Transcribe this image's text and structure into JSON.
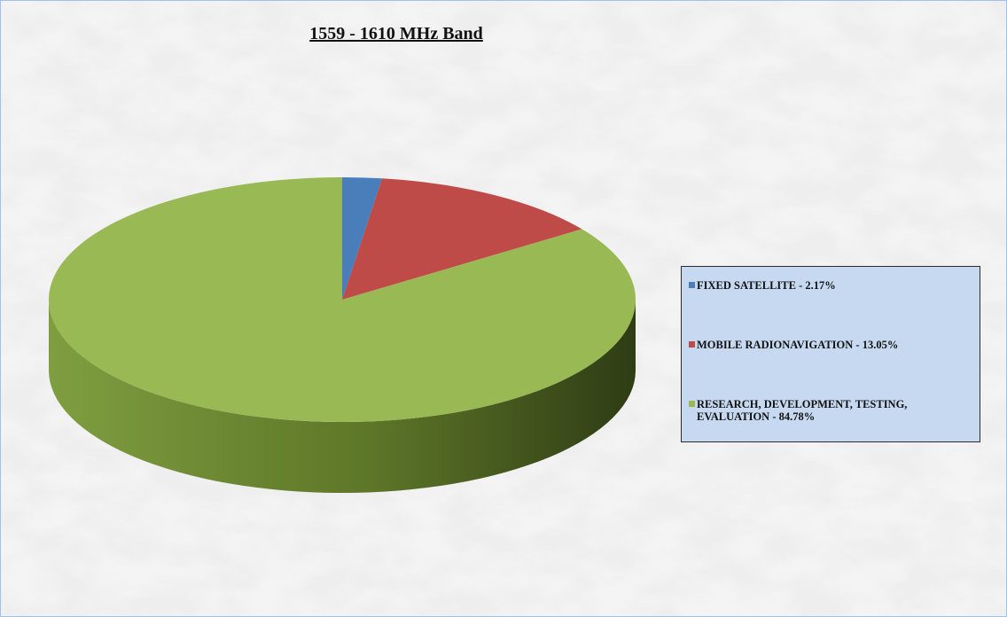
{
  "chart_data": {
    "type": "pie",
    "title": "1559 - 1610 MHz Band",
    "categories": [
      "FIXED SATELLITE - 2.17%",
      "MOBILE RADIONAVIGATION - 13.05%",
      "RESEARCH, DEVELOPMENT, TESTING, EVALUATION - 84.78%"
    ],
    "values": [
      2.17,
      13.05,
      84.78
    ],
    "colors": [
      "#4a7ebb",
      "#be4b48",
      "#98b954"
    ],
    "legend": "right"
  }
}
